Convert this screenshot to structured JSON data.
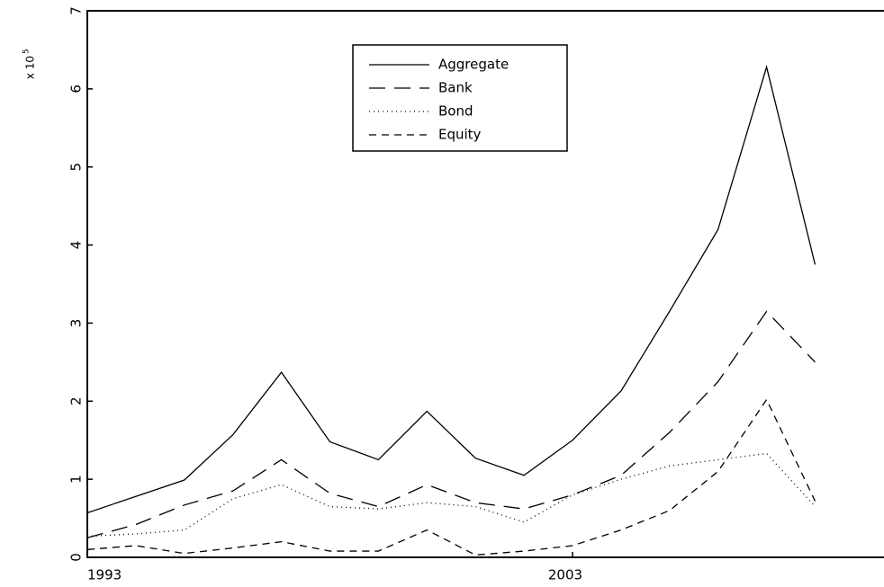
{
  "chart_data": {
    "type": "line",
    "ylabel": "x 10",
    "ylabel_exponent": "5",
    "x": [
      1993,
      1994,
      1995,
      1996,
      1997,
      1998,
      1999,
      2000,
      2001,
      2002,
      2003,
      2004,
      2005,
      2006,
      2007,
      2008
    ],
    "xlim": [
      1993,
      2009.42
    ],
    "xticks": [
      1993,
      2003
    ],
    "ylim": [
      0,
      7
    ],
    "yticks": [
      0,
      1,
      2,
      3,
      4,
      5,
      6,
      7
    ],
    "legend": "upper-center",
    "series": [
      {
        "name": "Aggregate",
        "color": "#000000",
        "dash": "none",
        "values": [
          0.57,
          0.78,
          0.99,
          1.57,
          2.37,
          1.48,
          1.25,
          1.87,
          1.27,
          1.05,
          1.5,
          2.13,
          3.15,
          4.2,
          6.28,
          3.75
        ]
      },
      {
        "name": "Bank",
        "color": "#000000",
        "dash": "18,10",
        "values": [
          0.25,
          0.42,
          0.67,
          0.85,
          1.25,
          0.82,
          0.65,
          0.93,
          0.7,
          0.62,
          0.8,
          1.05,
          1.6,
          2.25,
          3.15,
          2.5
        ]
      },
      {
        "name": "Bond",
        "color": "#000000",
        "dash": "1,4",
        "values": [
          0.27,
          0.3,
          0.35,
          0.75,
          0.93,
          0.65,
          0.62,
          0.7,
          0.65,
          0.45,
          0.8,
          1.0,
          1.17,
          1.25,
          1.33,
          0.65
        ]
      },
      {
        "name": "Equity",
        "color": "#000000",
        "dash": "8,6",
        "values": [
          0.1,
          0.15,
          0.05,
          0.12,
          0.2,
          0.08,
          0.08,
          0.35,
          0.03,
          0.08,
          0.15,
          0.35,
          0.6,
          1.1,
          2.02,
          0.72
        ]
      }
    ]
  }
}
